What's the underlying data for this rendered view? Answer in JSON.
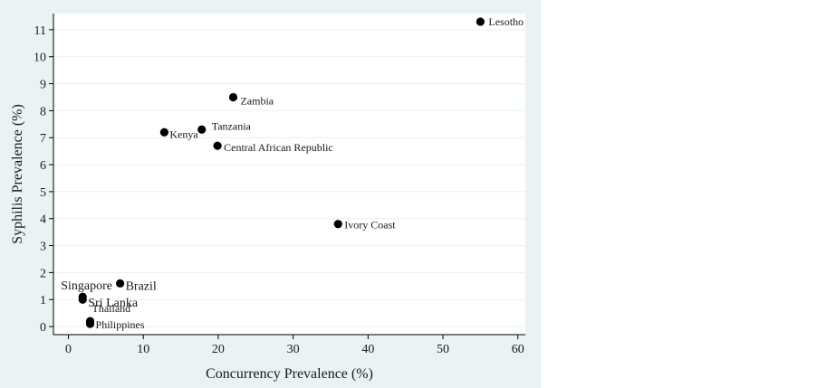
{
  "chart_data": {
    "type": "scatter",
    "title": "",
    "xlabel": "Concurrency Prevalence (%)",
    "ylabel": "Syphilis Prevalence (%)",
    "xlim": [
      -2,
      61
    ],
    "ylim": [
      -0.3,
      11.6
    ],
    "xticks": [
      0,
      10,
      20,
      30,
      40,
      50,
      60
    ],
    "yticks": [
      0,
      1,
      2,
      3,
      4,
      5,
      6,
      7,
      8,
      9,
      10,
      11
    ],
    "grid": "horizontal",
    "marker_color": "#000000",
    "gridline_color": "#e8eff1",
    "points": [
      {
        "label": "Lesotho",
        "x": 55,
        "y": 11.3
      },
      {
        "label": "Zambia",
        "x": 22,
        "y": 8.5
      },
      {
        "label": "Kenya",
        "x": 12.8,
        "y": 7.2
      },
      {
        "label": "Tanzania",
        "x": 17.8,
        "y": 7.3
      },
      {
        "label": "Central African Republic",
        "x": 19.9,
        "y": 6.7
      },
      {
        "label": "Ivory Coast",
        "x": 36,
        "y": 3.8
      },
      {
        "label": "Brazil",
        "x": 6.9,
        "y": 1.6
      },
      {
        "label": "Singapore",
        "x": 1.9,
        "y": 1.1
      },
      {
        "label": "Sri Lanka",
        "x": 1.9,
        "y": 1.0
      },
      {
        "label": "Thailand",
        "x": 2.9,
        "y": 0.2
      },
      {
        "label": "Philippines",
        "x": 2.9,
        "y": 0.1
      }
    ]
  }
}
